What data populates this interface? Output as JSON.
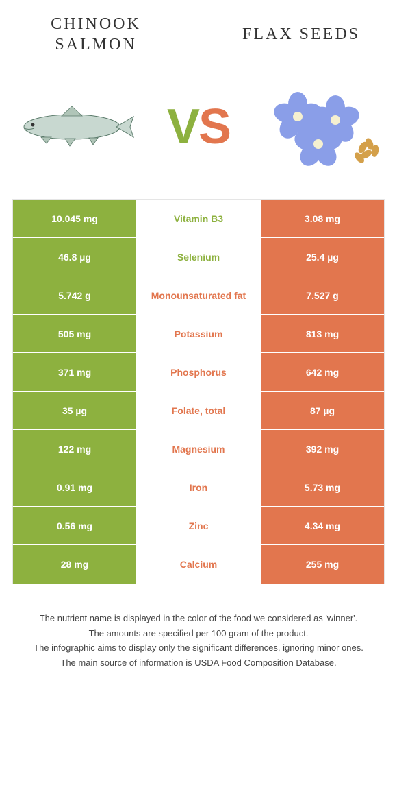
{
  "header": {
    "left_title": "CHINOOK SALMON",
    "right_title": "FLAX SEEDS"
  },
  "vs": {
    "v": "V",
    "s": "S"
  },
  "colors": {
    "left_bg": "#8db13f",
    "right_bg": "#e2764e",
    "mid_bg": "#ffffff",
    "left_text": "#8db13f",
    "right_text": "#e2764e",
    "border": "#e5e5e5",
    "footer_text": "#444444"
  },
  "table": {
    "rows": [
      {
        "nutrient": "Vitamin B3",
        "left": "10.045 mg",
        "right": "3.08 mg",
        "winner": "left"
      },
      {
        "nutrient": "Selenium",
        "left": "46.8 µg",
        "right": "25.4 µg",
        "winner": "left"
      },
      {
        "nutrient": "Monounsaturated fat",
        "left": "5.742 g",
        "right": "7.527 g",
        "winner": "right"
      },
      {
        "nutrient": "Potassium",
        "left": "505 mg",
        "right": "813 mg",
        "winner": "right"
      },
      {
        "nutrient": "Phosphorus",
        "left": "371 mg",
        "right": "642 mg",
        "winner": "right"
      },
      {
        "nutrient": "Folate, total",
        "left": "35 µg",
        "right": "87 µg",
        "winner": "right"
      },
      {
        "nutrient": "Magnesium",
        "left": "122 mg",
        "right": "392 mg",
        "winner": "right"
      },
      {
        "nutrient": "Iron",
        "left": "0.91 mg",
        "right": "5.73 mg",
        "winner": "right"
      },
      {
        "nutrient": "Zinc",
        "left": "0.56 mg",
        "right": "4.34 mg",
        "winner": "right"
      },
      {
        "nutrient": "Calcium",
        "left": "28 mg",
        "right": "255 mg",
        "winner": "right"
      }
    ]
  },
  "footer": {
    "line1": "The nutrient name is displayed in the color of the food we considered as 'winner'.",
    "line2": "The amounts are specified per 100 gram of the product.",
    "line3": "The infographic aims to display only the significant differences, ignoring minor ones.",
    "line4": "The main source of information is USDA Food Composition Database."
  }
}
